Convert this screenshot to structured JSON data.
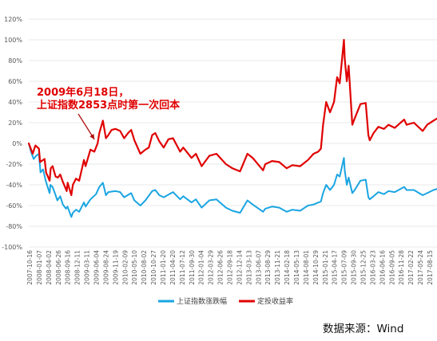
{
  "chart_data": {
    "type": "line",
    "title": "",
    "xlabel": "",
    "ylabel": "",
    "ylim": [
      -100,
      120
    ],
    "y_ticks": [
      "120%",
      "100%",
      "80%",
      "60%",
      "40%",
      "20%",
      "0%",
      "-20%",
      "-40%",
      "-60%",
      "-80%",
      "-100%"
    ],
    "x_ticks": [
      "2007-10-16",
      "2008-01-07",
      "2008-04-02",
      "2008-06-26",
      "2008-09-16",
      "2008-12-11",
      "2009-03-11",
      "2009-06-04",
      "2009-08-24",
      "2009-11-19",
      "2010-02-09",
      "2010-05-10",
      "2010-08-02",
      "2010-10-27",
      "2011-01-20",
      "2011-04-20",
      "2011-07-12",
      "2011-09-30",
      "2012-01-04",
      "2012-03-29",
      "2012-06-26",
      "2012-09-18",
      "2012-12-14",
      "2013-03-13",
      "2013-06-07",
      "2013-08-29",
      "2013-11-21",
      "2014-02-18",
      "2014-05-13",
      "2014-08-01",
      "2014-10-29",
      "2015-01-21",
      "2015-04-17",
      "2015-07-09",
      "2015-09-30",
      "2015-12-25",
      "2016-03-23",
      "2016-06-16",
      "2016-09-05",
      "2016-11-28",
      "2017-02-22",
      "2017-05-24",
      "2017-08-15"
    ],
    "x_start": "2007-10-16",
    "x_end": "2017-09-15",
    "series": [
      {
        "name": "上证指数涨跌幅",
        "color": "#1aa5e2",
        "points": [
          [
            "2007-10-16",
            0
          ],
          [
            "2007-11-05",
            -8
          ],
          [
            "2007-11-28",
            -15
          ],
          [
            "2007-12-20",
            -12
          ],
          [
            "2008-01-14",
            -10
          ],
          [
            "2008-01-28",
            -28
          ],
          [
            "2008-02-20",
            -25
          ],
          [
            "2008-03-14",
            -36
          ],
          [
            "2008-04-18",
            -48
          ],
          [
            "2008-04-25",
            -40
          ],
          [
            "2008-05-14",
            -42
          ],
          [
            "2008-06-10",
            -50
          ],
          [
            "2008-06-26",
            -55
          ],
          [
            "2008-07-21",
            -51
          ],
          [
            "2008-08-14",
            -59
          ],
          [
            "2008-09-10",
            -63
          ],
          [
            "2008-09-24",
            -61
          ],
          [
            "2008-10-28",
            -71
          ],
          [
            "2008-11-10",
            -67
          ],
          [
            "2008-12-08",
            -64
          ],
          [
            "2009-01-05",
            -66
          ],
          [
            "2009-02-17",
            -57
          ],
          [
            "2009-03-03",
            -61
          ],
          [
            "2009-04-15",
            -54
          ],
          [
            "2009-06-04",
            -49
          ],
          [
            "2009-07-03",
            -42
          ],
          [
            "2009-08-04",
            -38
          ],
          [
            "2009-08-31",
            -50
          ],
          [
            "2009-09-21",
            -47
          ],
          [
            "2009-11-23",
            -46
          ],
          [
            "2010-01-04",
            -47
          ],
          [
            "2010-02-08",
            -52
          ],
          [
            "2010-04-12",
            -48
          ],
          [
            "2010-05-10",
            -55
          ],
          [
            "2010-07-02",
            -60
          ],
          [
            "2010-08-16",
            -55
          ],
          [
            "2010-10-15",
            -46
          ],
          [
            "2010-11-12",
            -45
          ],
          [
            "2010-12-17",
            -50
          ],
          [
            "2011-01-25",
            -52
          ],
          [
            "2011-04-18",
            -47
          ],
          [
            "2011-06-20",
            -54
          ],
          [
            "2011-07-18",
            -51
          ],
          [
            "2011-09-29",
            -57
          ],
          [
            "2011-11-07",
            -54
          ],
          [
            "2011-12-28",
            -62
          ],
          [
            "2012-03-05",
            -55
          ],
          [
            "2012-05-07",
            -54
          ],
          [
            "2012-07-30",
            -62
          ],
          [
            "2012-09-25",
            -65
          ],
          [
            "2012-12-03",
            -67
          ],
          [
            "2013-02-06",
            -55
          ],
          [
            "2013-03-25",
            -59
          ],
          [
            "2013-06-25",
            -66
          ],
          [
            "2013-07-15",
            -63
          ],
          [
            "2013-09-12",
            -61
          ],
          [
            "2013-11-15",
            -62
          ],
          [
            "2014-01-20",
            -66
          ],
          [
            "2014-03-11",
            -64
          ],
          [
            "2014-05-20",
            -65
          ],
          [
            "2014-07-28",
            -60
          ],
          [
            "2014-09-16",
            -59
          ],
          [
            "2014-11-20",
            -56
          ],
          [
            "2014-12-09",
            -48
          ],
          [
            "2015-01-06",
            -40
          ],
          [
            "2015-02-09",
            -45
          ],
          [
            "2015-03-16",
            -40
          ],
          [
            "2015-04-13",
            -30
          ],
          [
            "2015-05-06",
            -32
          ],
          [
            "2015-06-12",
            -14
          ],
          [
            "2015-06-19",
            -26
          ],
          [
            "2015-07-08",
            -40
          ],
          [
            "2015-07-24",
            -33
          ],
          [
            "2015-08-26",
            -48
          ],
          [
            "2015-09-15",
            -45
          ],
          [
            "2015-11-06",
            -36
          ],
          [
            "2015-12-23",
            -35
          ],
          [
            "2016-01-15",
            -52
          ],
          [
            "2016-01-27",
            -54
          ],
          [
            "2016-03-01",
            -51
          ],
          [
            "2016-04-13",
            -47
          ],
          [
            "2016-06-01",
            -49
          ],
          [
            "2016-07-12",
            -46
          ],
          [
            "2016-09-05",
            -47
          ],
          [
            "2016-11-28",
            -42
          ],
          [
            "2016-12-20",
            -45
          ],
          [
            "2017-02-22",
            -45
          ],
          [
            "2017-05-11",
            -50
          ],
          [
            "2017-06-20",
            -48
          ],
          [
            "2017-08-15",
            -45
          ],
          [
            "2017-09-15",
            -44
          ]
        ]
      },
      {
        "name": "定投收益率",
        "color": "#e00000",
        "points": [
          [
            "2007-10-16",
            0
          ],
          [
            "2007-10-30",
            -4
          ],
          [
            "2007-11-20",
            -10
          ],
          [
            "2007-12-14",
            -2
          ],
          [
            "2008-01-14",
            -5
          ],
          [
            "2008-01-25",
            -18
          ],
          [
            "2008-03-04",
            -15
          ],
          [
            "2008-03-18",
            -28
          ],
          [
            "2008-04-18",
            -36
          ],
          [
            "2008-04-28",
            -24
          ],
          [
            "2008-05-14",
            -22
          ],
          [
            "2008-06-10",
            -32
          ],
          [
            "2008-07-01",
            -33
          ],
          [
            "2008-07-21",
            -30
          ],
          [
            "2008-08-13",
            -37
          ],
          [
            "2008-09-17",
            -46
          ],
          [
            "2008-09-25",
            -38
          ],
          [
            "2008-10-28",
            -50
          ],
          [
            "2008-11-10",
            -40
          ],
          [
            "2008-12-08",
            -34
          ],
          [
            "2009-01-05",
            -36
          ],
          [
            "2009-02-17",
            -16
          ],
          [
            "2009-03-03",
            -22
          ],
          [
            "2009-04-15",
            -6
          ],
          [
            "2009-05-20",
            -8
          ],
          [
            "2009-06-18",
            0
          ],
          [
            "2009-07-03",
            10
          ],
          [
            "2009-08-04",
            22
          ],
          [
            "2009-08-31",
            5
          ],
          [
            "2009-09-21",
            8
          ],
          [
            "2009-10-20",
            13
          ],
          [
            "2009-11-23",
            14
          ],
          [
            "2010-01-04",
            12
          ],
          [
            "2010-02-08",
            5
          ],
          [
            "2010-03-15",
            10
          ],
          [
            "2010-04-12",
            13
          ],
          [
            "2010-05-10",
            3
          ],
          [
            "2010-07-02",
            -10
          ],
          [
            "2010-08-16",
            -6
          ],
          [
            "2010-09-15",
            -4
          ],
          [
            "2010-10-15",
            8
          ],
          [
            "2010-11-12",
            10
          ],
          [
            "2010-12-17",
            2
          ],
          [
            "2011-01-25",
            -4
          ],
          [
            "2011-03-08",
            4
          ],
          [
            "2011-04-18",
            5
          ],
          [
            "2011-06-20",
            -8
          ],
          [
            "2011-07-18",
            -4
          ],
          [
            "2011-09-29",
            -14
          ],
          [
            "2011-11-07",
            -10
          ],
          [
            "2011-12-28",
            -22
          ],
          [
            "2012-03-05",
            -12
          ],
          [
            "2012-05-07",
            -10
          ],
          [
            "2012-07-30",
            -20
          ],
          [
            "2012-09-25",
            -24
          ],
          [
            "2012-12-03",
            -27
          ],
          [
            "2013-02-06",
            -10
          ],
          [
            "2013-03-25",
            -14
          ],
          [
            "2013-06-25",
            -26
          ],
          [
            "2013-07-15",
            -20
          ],
          [
            "2013-09-12",
            -17
          ],
          [
            "2013-11-15",
            -18
          ],
          [
            "2014-01-20",
            -24
          ],
          [
            "2014-03-11",
            -21
          ],
          [
            "2014-05-20",
            -22
          ],
          [
            "2014-07-28",
            -16
          ],
          [
            "2014-09-16",
            -10
          ],
          [
            "2014-10-27",
            -8
          ],
          [
            "2014-11-20",
            -5
          ],
          [
            "2014-12-09",
            18
          ],
          [
            "2015-01-06",
            40
          ],
          [
            "2015-02-09",
            30
          ],
          [
            "2015-03-16",
            40
          ],
          [
            "2015-04-13",
            64
          ],
          [
            "2015-05-06",
            58
          ],
          [
            "2015-06-12",
            100
          ],
          [
            "2015-06-19",
            82
          ],
          [
            "2015-07-08",
            60
          ],
          [
            "2015-07-24",
            75
          ],
          [
            "2015-08-26",
            18
          ],
          [
            "2015-09-15",
            24
          ],
          [
            "2015-11-06",
            38
          ],
          [
            "2015-12-23",
            39
          ],
          [
            "2016-01-15",
            8
          ],
          [
            "2016-01-27",
            3
          ],
          [
            "2016-03-01",
            10
          ],
          [
            "2016-04-13",
            16
          ],
          [
            "2016-06-01",
            14
          ],
          [
            "2016-07-12",
            18
          ],
          [
            "2016-09-05",
            15
          ],
          [
            "2016-11-28",
            23
          ],
          [
            "2016-12-20",
            18
          ],
          [
            "2017-02-22",
            20
          ],
          [
            "2017-05-11",
            12
          ],
          [
            "2017-06-20",
            18
          ],
          [
            "2017-08-15",
            22
          ],
          [
            "2017-09-15",
            24
          ]
        ]
      }
    ],
    "annotation": {
      "lines": [
        "2009年6月18日，",
        "上证指数2853点时第一次回本"
      ],
      "target_date": "2009-06-18",
      "target_value": 0
    },
    "source_text": "数据来源：Wind"
  }
}
